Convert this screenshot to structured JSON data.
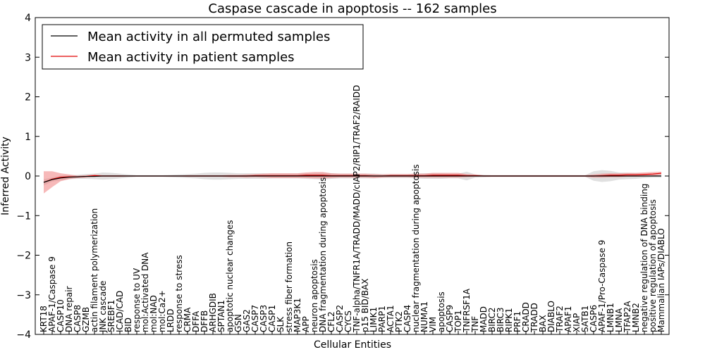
{
  "chart_data": {
    "type": "line",
    "title": "Caspase cascade in apoptosis -- 162 samples",
    "xlabel": "Cellular Entities",
    "ylabel": "Inferred Activity",
    "ylim": [
      -4,
      4
    ],
    "yticks": [
      -4,
      -3,
      -2,
      -1,
      0,
      1,
      2,
      3,
      4
    ],
    "ytick_labels": [
      "−4",
      "−3",
      "−2",
      "−1",
      "0",
      "1",
      "2",
      "3",
      "4"
    ],
    "grid": false,
    "legend_position": "top-left",
    "categories": [
      "KRT18",
      "APAF-1/Caspase 9",
      "CASP10",
      "DNA repair",
      "CASP8",
      "GZMB",
      "actin filament polymerization",
      "JNK cascade",
      "SREBF1",
      "ICAD/CAD",
      "BID",
      "response to UV",
      "mol:Activated DNA",
      "mol:NAD",
      "mol:Ca2+",
      "LRDD",
      "response to stress",
      "CRMA",
      "DFFA",
      "DFFB",
      "ARHGDIB",
      "SPTAN1",
      "apoptotic nuclear changes",
      "GSN",
      "GAS2",
      "CASP7",
      "CASP3",
      "CASP1",
      "SLK",
      "stress fiber formation",
      "MAP3K1",
      "APP",
      "neuron apoptosis",
      "DNA fragmentation during apoptosis",
      "CFL2",
      "CASP2",
      "CYCS",
      "TNF-alpha/TNFR1A/TRADD/MADD/cIAP2/RIP1/TRAF2/RAIDD",
      "p15 BID/BAX",
      "LIMK1",
      "PARP1",
      "ACTA1",
      "PTK2",
      "CASP4",
      "nuclear fragmentation during apoptosis",
      "NUMA1",
      "VIM",
      "apoptosis",
      "CASP9",
      "TOP1",
      "TNFRSF1A",
      "TNF",
      "MADD",
      "BIRC2",
      "BIRC3",
      "RIPK1",
      "PRF1",
      "CRADD",
      "TRADD",
      "BAX",
      "DIABLO",
      "TRAF2",
      "APAF1",
      "XIAP",
      "SATB1",
      "CASP6",
      "APAF-1/Pro-Caspase 9",
      "LMNB1",
      "LMNA",
      "TFAP2A",
      "LMNB2",
      "negative regulation of DNA binding",
      "positive regulation of apoptosis",
      "Mammalian IAPs/DIABLO"
    ],
    "series": [
      {
        "name": "Mean activity in all permuted samples",
        "color": "#000000",
        "band_color": "#bbbbbb",
        "values": [
          -0.16,
          -0.09,
          -0.05,
          -0.03,
          -0.02,
          -0.01,
          -0.01,
          0.0,
          0.0,
          0.0,
          0.0,
          0.0,
          0.0,
          0.0,
          0.0,
          0.0,
          0.0,
          0.0,
          0.0,
          0.0,
          0.0,
          0.0,
          0.0,
          0.0,
          0.0,
          0.0,
          0.0,
          0.0,
          0.0,
          0.0,
          0.0,
          0.0,
          0.0,
          0.0,
          0.0,
          0.0,
          0.0,
          0.0,
          0.0,
          0.0,
          0.0,
          0.0,
          0.0,
          0.0,
          0.0,
          0.0,
          0.0,
          0.0,
          0.0,
          0.0,
          0.0,
          0.0,
          0.0,
          0.0,
          0.0,
          0.0,
          0.0,
          0.0,
          0.0,
          0.0,
          0.0,
          0.0,
          0.0,
          0.0,
          0.0,
          0.0,
          0.0,
          0.0,
          0.0,
          0.0,
          0.0,
          0.0,
          0.0,
          0.0
        ],
        "spread": [
          0.08,
          0.05,
          0.06,
          0.05,
          0.05,
          0.06,
          0.07,
          0.09,
          0.08,
          0.06,
          0.04,
          0.02,
          0.02,
          0.02,
          0.02,
          0.03,
          0.04,
          0.05,
          0.06,
          0.08,
          0.09,
          0.09,
          0.08,
          0.07,
          0.07,
          0.07,
          0.07,
          0.06,
          0.06,
          0.06,
          0.06,
          0.07,
          0.08,
          0.09,
          0.07,
          0.06,
          0.06,
          0.06,
          0.06,
          0.06,
          0.05,
          0.05,
          0.05,
          0.05,
          0.06,
          0.07,
          0.07,
          0.07,
          0.06,
          0.06,
          0.11,
          0.04,
          0.03,
          0.02,
          0.02,
          0.02,
          0.02,
          0.02,
          0.02,
          0.02,
          0.02,
          0.02,
          0.02,
          0.02,
          0.02,
          0.12,
          0.15,
          0.13,
          0.09,
          0.08,
          0.07,
          0.05,
          0.04,
          0.04
        ]
      },
      {
        "name": "Mean activity in patient samples",
        "color": "#e00000",
        "band_color": "#f08080",
        "values": [
          -0.16,
          -0.08,
          -0.03,
          -0.02,
          -0.02,
          -0.01,
          0.01,
          0.0,
          0.0,
          0.0,
          0.0,
          0.0,
          0.0,
          0.0,
          0.0,
          0.0,
          0.0,
          0.0,
          0.0,
          0.0,
          0.0,
          0.0,
          0.0,
          0.0,
          0.0,
          0.01,
          0.01,
          0.01,
          0.01,
          0.01,
          0.01,
          0.02,
          0.02,
          0.02,
          0.01,
          0.01,
          0.01,
          0.01,
          0.01,
          0.0,
          0.0,
          0.01,
          0.01,
          0.01,
          0.01,
          0.01,
          0.02,
          0.02,
          0.02,
          0.02,
          0.01,
          0.01,
          0.0,
          0.0,
          0.0,
          0.0,
          0.0,
          0.0,
          0.0,
          0.0,
          0.0,
          0.0,
          0.0,
          0.0,
          0.0,
          0.0,
          0.01,
          0.02,
          0.02,
          0.03,
          0.03,
          0.04,
          0.05,
          0.07
        ],
        "spread": [
          0.28,
          0.2,
          0.1,
          0.06,
          0.03,
          0.03,
          0.03,
          0.02,
          0.02,
          0.02,
          0.01,
          0.01,
          0.01,
          0.01,
          0.01,
          0.01,
          0.01,
          0.02,
          0.02,
          0.02,
          0.02,
          0.02,
          0.03,
          0.03,
          0.04,
          0.04,
          0.05,
          0.06,
          0.06,
          0.06,
          0.06,
          0.07,
          0.08,
          0.08,
          0.06,
          0.05,
          0.05,
          0.05,
          0.05,
          0.05,
          0.04,
          0.04,
          0.04,
          0.04,
          0.05,
          0.05,
          0.06,
          0.06,
          0.06,
          0.06,
          0.04,
          0.03,
          0.02,
          0.02,
          0.02,
          0.02,
          0.02,
          0.02,
          0.02,
          0.02,
          0.02,
          0.02,
          0.02,
          0.02,
          0.02,
          0.04,
          0.05,
          0.05,
          0.05,
          0.05,
          0.05,
          0.05,
          0.05,
          0.04
        ]
      }
    ]
  }
}
